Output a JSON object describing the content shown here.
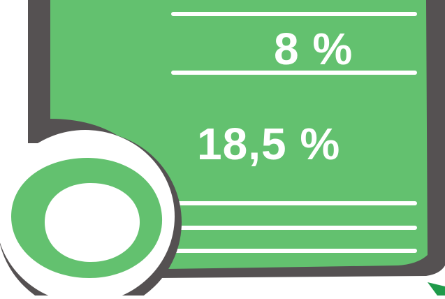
{
  "graphic": {
    "value_top": "8 %",
    "value_middle": "18,5 %",
    "colors": {
      "panel_green": "#63c16f",
      "shadow_gray": "#555152",
      "line_white": "#ffffff",
      "accent_green": "#1f9a4a"
    },
    "shapes": [
      "green-panel",
      "circle-badge",
      "divider-lines"
    ]
  }
}
